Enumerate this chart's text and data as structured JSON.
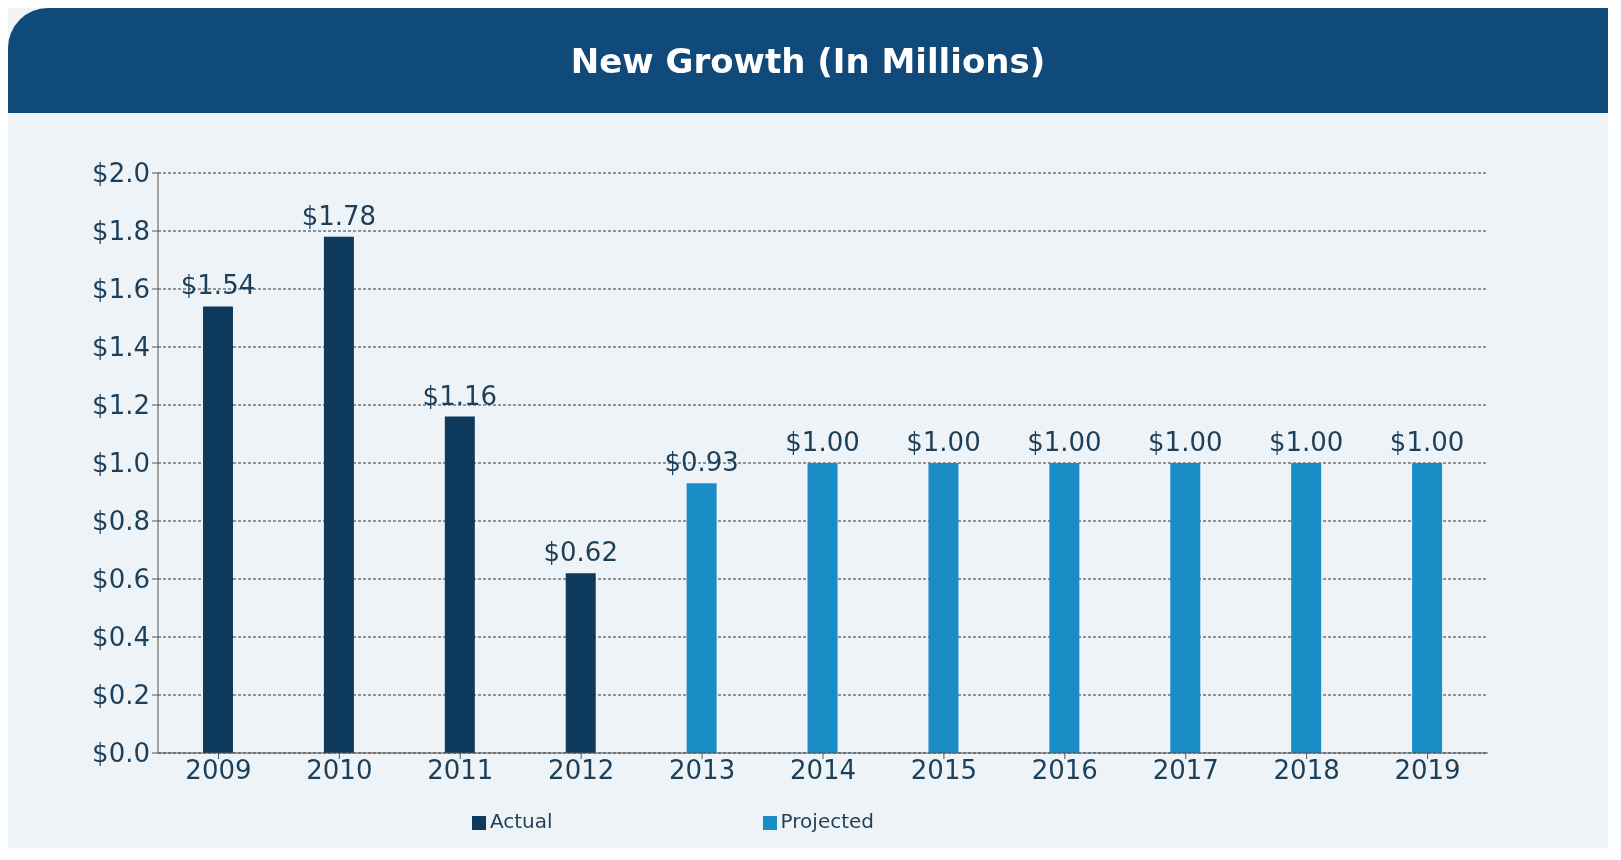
{
  "chart_data": {
    "type": "bar",
    "title": "New Growth (In Millions)",
    "categories": [
      "2009",
      "2010",
      "2011",
      "2012",
      "2013",
      "2014",
      "2015",
      "2016",
      "2017",
      "2018",
      "2019"
    ],
    "series": [
      {
        "name": "Actual",
        "color": "#0e3a5e",
        "values": [
          1.54,
          1.78,
          1.16,
          0.62,
          null,
          null,
          null,
          null,
          null,
          null,
          null
        ],
        "value_labels": [
          "$1.54",
          "$1.78",
          "$1.16",
          "$0.62",
          null,
          null,
          null,
          null,
          null,
          null,
          null
        ]
      },
      {
        "name": "Projected",
        "color": "#1a8cc6",
        "values": [
          null,
          null,
          null,
          null,
          0.93,
          1.0,
          1.0,
          1.0,
          1.0,
          1.0,
          1.0
        ],
        "value_labels": [
          null,
          null,
          null,
          null,
          "$0.93",
          "$1.00",
          "$1.00",
          "$1.00",
          "$1.00",
          "$1.00",
          "$1.00"
        ]
      }
    ],
    "ylim": [
      0,
      2
    ],
    "yticks": [
      {
        "value": 0,
        "label": "$0.0"
      },
      {
        "value": 0.2,
        "label": "$0.2"
      },
      {
        "value": 0.4,
        "label": "$0.4"
      },
      {
        "value": 0.6,
        "label": "$0.6"
      },
      {
        "value": 0.8,
        "label": "$0.8"
      },
      {
        "value": 1.0,
        "label": "$1.0"
      },
      {
        "value": 1.2,
        "label": "$1.2"
      },
      {
        "value": 1.4,
        "label": "$1.4"
      },
      {
        "value": 1.6,
        "label": "$1.6"
      },
      {
        "value": 1.8,
        "label": "$1.8"
      },
      {
        "value": 2.0,
        "label": "$2.0"
      }
    ],
    "grid": "y",
    "legend": "bottom"
  }
}
